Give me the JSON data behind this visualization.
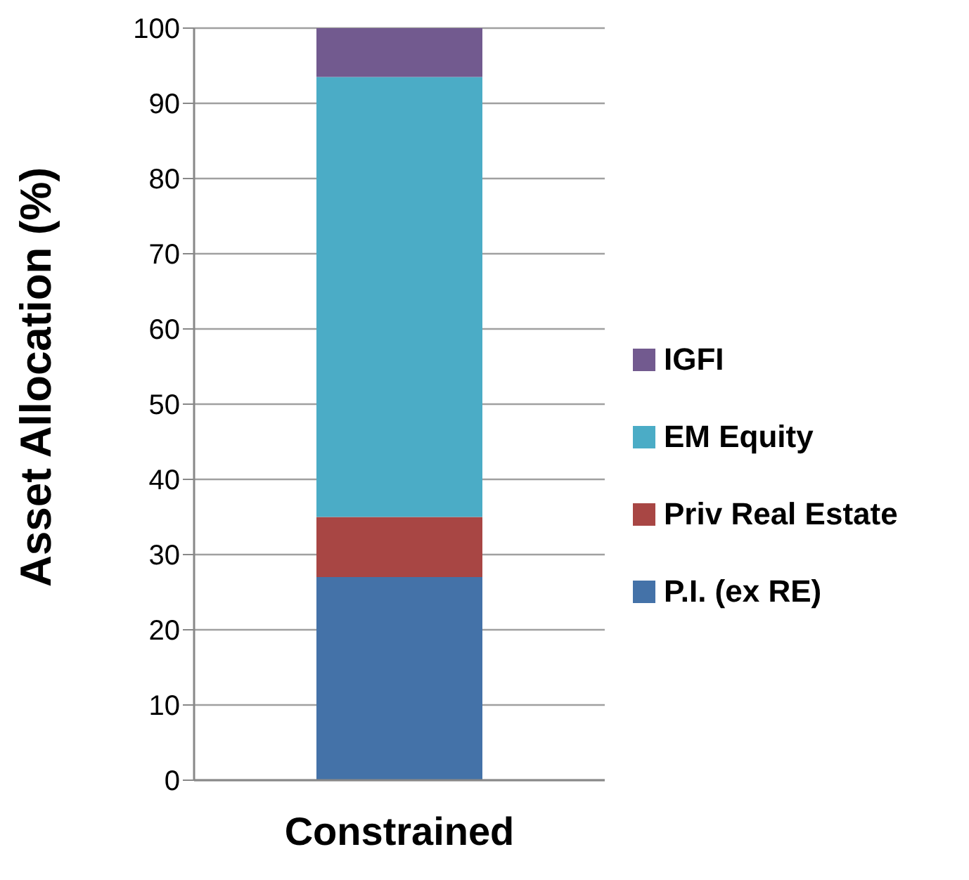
{
  "chart_data": {
    "type": "bar",
    "ylabel": "Asset Allocation (%)",
    "categories": [
      "Constrained"
    ],
    "stacked": true,
    "series": [
      {
        "name": "P.I. (ex RE)",
        "color": "#4472a8",
        "values": [
          27
        ]
      },
      {
        "name": "Priv Real Estate",
        "color": "#a84644",
        "values": [
          8
        ]
      },
      {
        "name": "EM Equity",
        "color": "#4bacc6",
        "values": [
          58.5
        ]
      },
      {
        "name": "IGFI",
        "color": "#725a8f",
        "values": [
          6.5
        ]
      }
    ],
    "ylim": [
      0,
      100
    ],
    "yticks": [
      0,
      10,
      20,
      30,
      40,
      50,
      60,
      70,
      80,
      90,
      100
    ],
    "grid": "y",
    "legend": "right"
  }
}
